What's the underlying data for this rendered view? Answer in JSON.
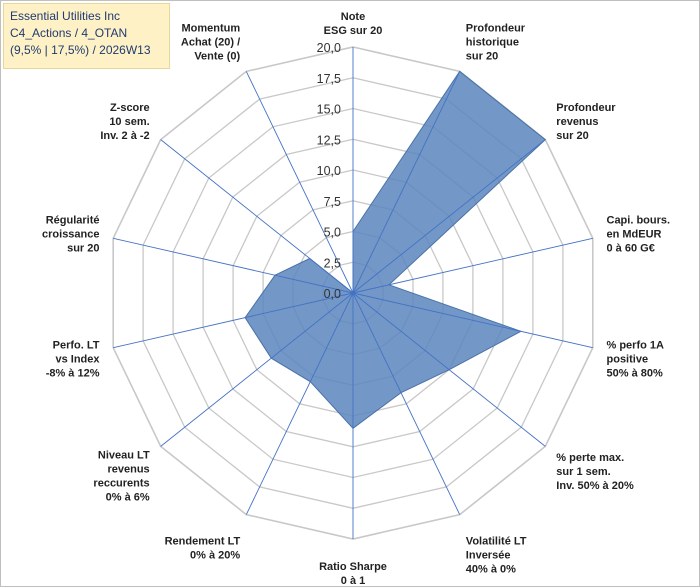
{
  "title": {
    "line1": "Essential Utilities Inc",
    "line2": "C4_Actions / 4_OTAN",
    "line3": "(9,5% | 17,5%) / 2026W13"
  },
  "colors": {
    "series_fill": "#5a86be",
    "series_stroke": "#4a72a8",
    "spoke": "#4472c4",
    "grid": "#c8c8c8",
    "title_bg": "#fff1c6",
    "title_text": "#1f3b70"
  },
  "chart_data": {
    "type": "radar",
    "title": "Essential Utilities Inc",
    "rmin": 0,
    "rmax": 20,
    "tick_step": 2.5,
    "tick_labels": [
      "0,0",
      "2,5",
      "5,0",
      "7,5",
      "10,0",
      "12,5",
      "15,0",
      "17,5",
      "20,0"
    ],
    "grid": true,
    "categories": [
      [
        "Note",
        "ESG sur 20"
      ],
      [
        "Profondeur",
        "historique",
        "sur 20"
      ],
      [
        "Profondeur",
        "revenus",
        "sur 20"
      ],
      [
        "Capi. bours.",
        "en MdEUR",
        "0 à 60 G€"
      ],
      [
        "% perfo 1A",
        "positive",
        "50% à 80%"
      ],
      [
        "% perte max.",
        "sur 1 sem.",
        "Inv. 50% à 20%"
      ],
      [
        "Volatilité LT",
        "Inversée",
        "40% à 0%"
      ],
      [
        "Ratio Sharpe",
        "0 à 1"
      ],
      [
        "Rendement LT",
        "0% à 20%"
      ],
      [
        "Niveau LT",
        "revenus",
        "reccurents",
        "0% à 6%"
      ],
      [
        "Perfo. LT",
        "vs Index",
        "-8% à 12%"
      ],
      [
        "Régularité",
        "croissance",
        "sur 20"
      ],
      [
        "Z-score",
        "10 sem.",
        "Inv. 2 à -2"
      ],
      [
        "Momentum",
        "Achat (20) /",
        "Vente (0)"
      ]
    ],
    "values": [
      5.0,
      20.0,
      20.0,
      3.0,
      14.0,
      10.0,
      9.0,
      11.0,
      8.0,
      8.5,
      9.0,
      6.5,
      4.5,
      0.0
    ]
  }
}
